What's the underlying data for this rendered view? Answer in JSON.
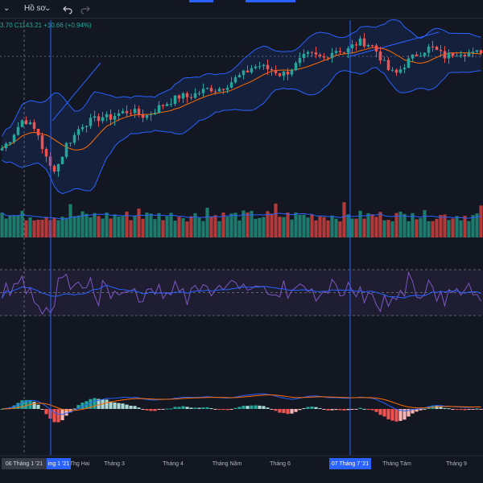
{
  "toolbar": {
    "dropdown_caret": "⌄",
    "layout_label": "Hồ sơ",
    "layout_caret": "⌄",
    "undo_icon": "undo-icon",
    "redo_icon": "redo-icon"
  },
  "legend": {
    "text": "3.70  C1143.21  +10.66 (+0.94%)"
  },
  "colors": {
    "up": "#26a69a",
    "down": "#ef5350",
    "bb": "#2962ff",
    "bb_fill": "rgba(41,98,255,0.12)",
    "basis": "#ff6d00",
    "rsi": "#7e57c2",
    "rsi_ma": "#2962ff",
    "macd": "#2962ff",
    "signal": "#ff6d00",
    "bg": "#131722",
    "crosshair": "#2962ff"
  },
  "time_axis": {
    "labels": [
      "Thg Hai",
      "Tháng 3",
      "Tháng 4",
      "Tháng Năm",
      "Tháng 6",
      "Tháng Tám",
      "Tháng 9"
    ],
    "badge_left": "06 Tháng 1 '21",
    "badge_mid": "ing 1 '21",
    "badge_right": "07 Tháng 7 '21"
  },
  "chart_data": {
    "type": "candlestick",
    "x_range": [
      "2021-01",
      "2021-09"
    ],
    "panes": [
      "price + bollinger bands",
      "volume + MA",
      "RSI",
      "MACD"
    ],
    "price_series": [
      1070,
      1080,
      1095,
      1110,
      1100,
      1090,
      1060,
      1040,
      1050,
      1075,
      1085,
      1100,
      1105,
      1108,
      1112,
      1110,
      1115,
      1118,
      1120,
      1116,
      1112,
      1118,
      1125,
      1130,
      1135,
      1140,
      1138,
      1142,
      1146,
      1150,
      1148,
      1152,
      1158,
      1165,
      1170,
      1178,
      1180,
      1176,
      1174,
      1168,
      1172,
      1180,
      1190,
      1195,
      1192,
      1190,
      1198,
      1202,
      1198,
      1206,
      1212,
      1210,
      1205,
      1190,
      1175,
      1168,
      1178,
      1188,
      1195,
      1200,
      1205,
      1198,
      1192,
      1196,
      1199,
      1197,
      1195,
      1200
    ],
    "rsi_levels": [
      70,
      50,
      30
    ]
  }
}
